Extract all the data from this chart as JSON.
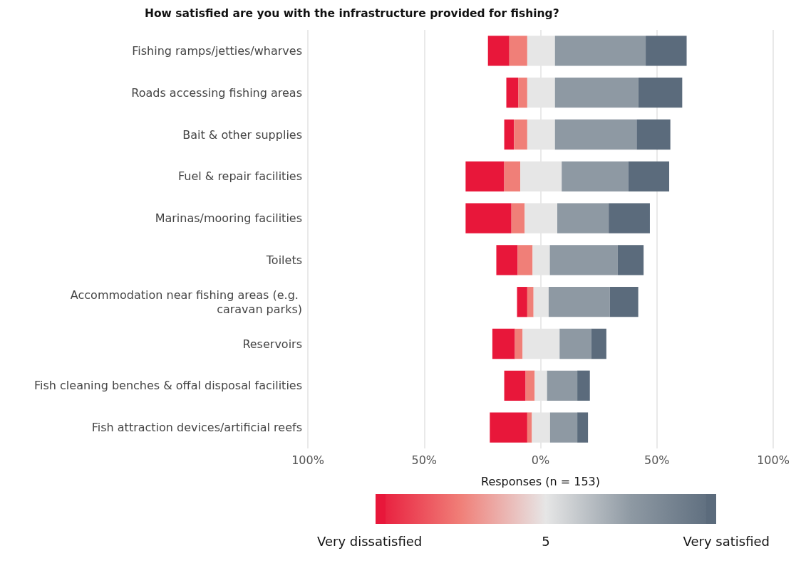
{
  "chart_data": {
    "type": "bar",
    "orientation": "horizontal",
    "title": "How satisfied are you with the infrastructure provided for fishing?",
    "xlabel": "Responses (n = 153)",
    "categories": [
      "Fishing ramps/jetties/wharves",
      "Roads accessing fishing areas",
      "Bait & other supplies",
      "Fuel & repair facilities",
      "Marinas/mooring facilities",
      "Toilets",
      "Accommodation near fishing areas (e.g. caravan parks)",
      "Reservoirs",
      "Fish cleaning benches & offal disposal facilities",
      "Fish attraction devices/artificial reefs"
    ],
    "series": [
      {
        "name": "Very dissatisfied",
        "color": "#e8173a",
        "values": [
          9.2,
          5.2,
          4.2,
          16.6,
          19.7,
          9.2,
          4.4,
          9.7,
          9.2,
          16.1
        ],
        "base": [
          -22.6,
          -14.7,
          -15.6,
          -32.2,
          -32.2,
          -19.0,
          -10.1,
          -20.7,
          -15.6,
          -21.8
        ]
      },
      {
        "color": "#f07f78",
        "values": [
          7.7,
          3.8,
          5.7,
          6.9,
          5.7,
          6.4,
          2.7,
          3.3,
          3.9,
          2.0
        ],
        "base": [
          -13.4,
          -9.5,
          -11.4,
          -15.6,
          -12.5,
          -9.8,
          -5.7,
          -11.0,
          -6.4,
          -5.7
        ]
      },
      {
        "color": "#e6e6e6",
        "values": [
          11.9,
          11.9,
          11.9,
          17.8,
          14.0,
          7.4,
          6.5,
          15.9,
          5.3,
          7.8
        ],
        "base": [
          -5.7,
          -5.7,
          -5.7,
          -8.7,
          -6.8,
          -3.4,
          -3.0,
          -7.7,
          -2.5,
          -3.7
        ]
      },
      {
        "color": "#8e99a3",
        "values": [
          39.0,
          35.8,
          35.1,
          28.6,
          22.1,
          29.2,
          26.3,
          13.6,
          13.0,
          11.7
        ],
        "base": [
          6.2,
          6.2,
          6.2,
          9.1,
          7.2,
          4.0,
          3.5,
          8.2,
          2.8,
          4.1
        ]
      },
      {
        "name": "Very satisfied",
        "color": "#5b6b7c",
        "values": [
          17.6,
          18.9,
          14.5,
          17.6,
          17.7,
          11.1,
          12.2,
          6.5,
          5.4,
          4.6
        ],
        "base": [
          45.2,
          42.0,
          41.3,
          37.7,
          29.3,
          33.2,
          29.8,
          21.8,
          15.8,
          15.8
        ]
      }
    ],
    "xlim": [
      -100,
      100
    ],
    "xticks": [
      {
        "value": -100,
        "label": "100%"
      },
      {
        "value": -50,
        "label": "50%"
      },
      {
        "value": 0,
        "label": "0%"
      },
      {
        "value": 50,
        "label": "50%"
      },
      {
        "value": 100,
        "label": "100%"
      }
    ],
    "grid": "x",
    "legend": "bottom",
    "annotations": [
      "5"
    ]
  }
}
